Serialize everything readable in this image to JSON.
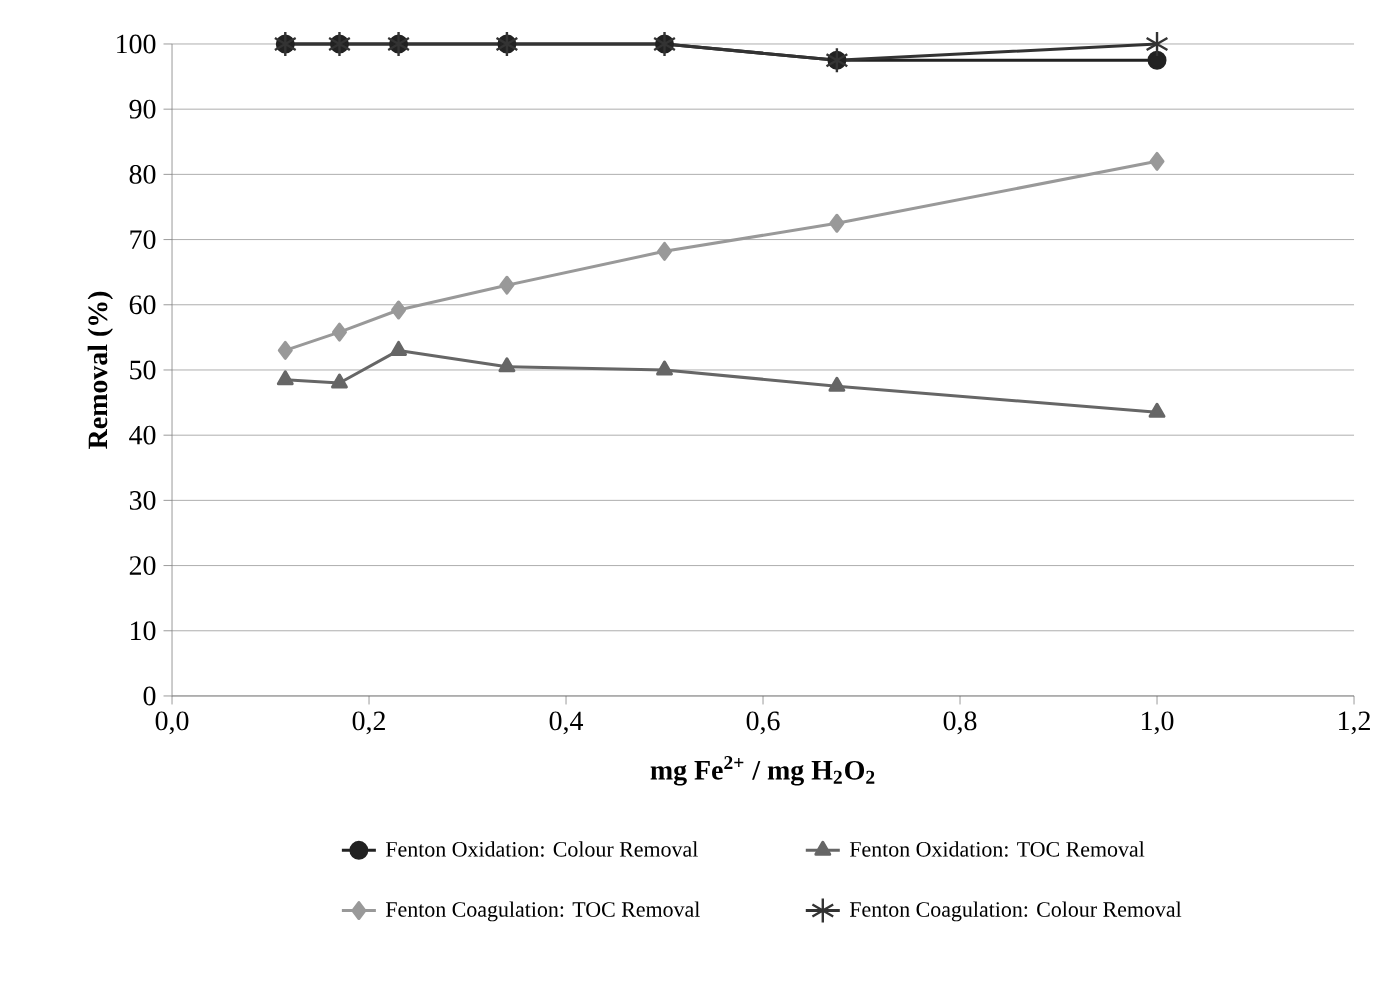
{
  "chart_data": {
    "type": "line",
    "xlabel": "mg Fe$^{2+}$ / mg H$_{2}$O$_{2}$",
    "ylabel": "Removal (%)",
    "x": [
      0.115,
      0.17,
      0.23,
      0.34,
      0.5,
      0.675,
      1.0
    ],
    "series": [
      {
        "name": "Fenton Oxidation: Colour Removal",
        "color": "#222222",
        "marker": "circle",
        "values": [
          100,
          100,
          100,
          100,
          100,
          97.5,
          97.5
        ]
      },
      {
        "name": "Fenton Oxidation: TOC Removal",
        "color": "#666666",
        "marker": "triangle",
        "values": [
          48.5,
          48,
          53,
          50.5,
          50,
          47.5,
          43.5
        ]
      },
      {
        "name": "Fenton Coagulation: TOC Removal",
        "color": "#999999",
        "marker": "diamond",
        "values": [
          53,
          55.8,
          59.2,
          63,
          68.2,
          72.5,
          82
        ]
      },
      {
        "name": "Fenton Coagulation: Colour Removal",
        "color": "#333333",
        "marker": "cross",
        "values": [
          100,
          100,
          100,
          100,
          100,
          97.5,
          100
        ]
      }
    ],
    "xlim": [
      0,
      1.2
    ],
    "ylim": [
      0,
      100
    ],
    "xticks": [
      {
        "value": 0,
        "label": "0,0"
      },
      {
        "value": 0.2,
        "label": "0,2"
      },
      {
        "value": 0.4,
        "label": "0,4"
      },
      {
        "value": 0.6,
        "label": "0,6"
      },
      {
        "value": 0.8,
        "label": "0,8"
      },
      {
        "value": 1.0,
        "label": "1,0"
      },
      {
        "value": 1.2,
        "label": "1,2"
      }
    ],
    "yticks": [
      0,
      10,
      20,
      30,
      40,
      50,
      60,
      70,
      80,
      90,
      100
    ],
    "grid": "y",
    "legend": "bottom",
    "line_style": "solid"
  }
}
